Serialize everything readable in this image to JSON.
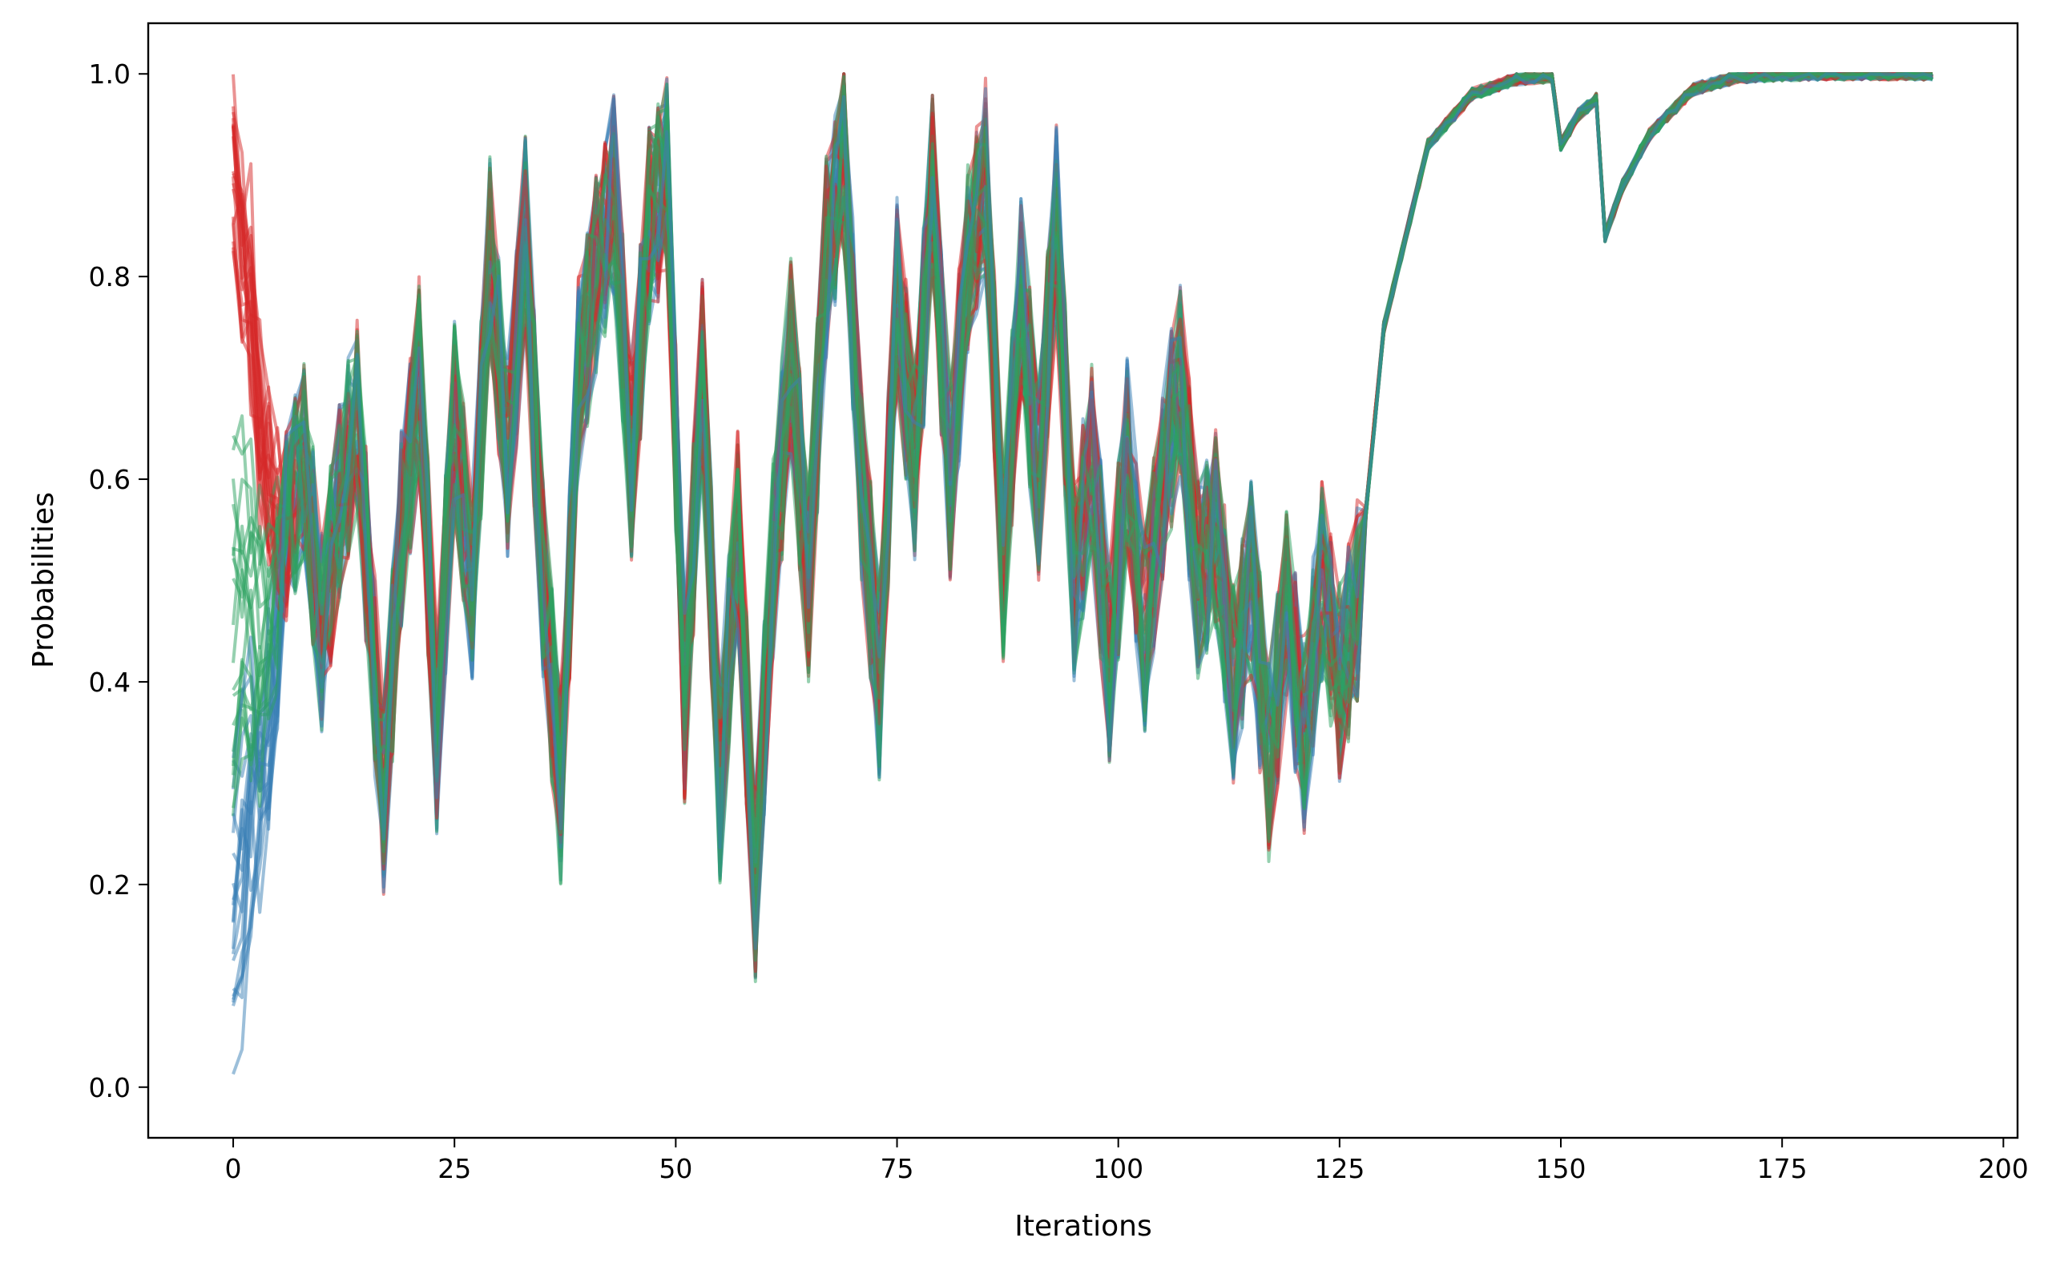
{
  "chart_data": {
    "type": "line",
    "title": "",
    "xlabel": "Iterations",
    "ylabel": "Probabilities",
    "xlim": [
      -9.6,
      201.6
    ],
    "ylim": [
      -0.05,
      1.05
    ],
    "xticks": [
      0,
      25,
      50,
      75,
      100,
      125,
      150,
      175,
      200
    ],
    "yticks": [
      0.0,
      0.2,
      0.4,
      0.6,
      0.8,
      1.0
    ],
    "xtick_labels": [
      "0",
      "25",
      "50",
      "75",
      "100",
      "125",
      "150",
      "175",
      "200"
    ],
    "ytick_labels": [
      "0.0",
      "0.2",
      "0.4",
      "0.6",
      "0.8",
      "1.0"
    ],
    "grid": false,
    "legend": "none",
    "line_alpha": 0.5,
    "series_groups": [
      {
        "color": "#d62728",
        "count": 20,
        "start": [
          0.82,
          1.0
        ],
        "iter_end": 192
      },
      {
        "color": "#2ca25f",
        "count": 20,
        "start": [
          0.25,
          0.65
        ],
        "iter_end": 192
      },
      {
        "color": "#3a7fb5",
        "count": 20,
        "start": [
          0.0,
          0.33
        ],
        "iter_end": 192
      }
    ],
    "representative_series": {
      "x": [
        0,
        3,
        6,
        8,
        10,
        12,
        14,
        17,
        19,
        21,
        23,
        25,
        27,
        29,
        31,
        33,
        35,
        37,
        39,
        41,
        43,
        45,
        47,
        49,
        51,
        53,
        55,
        57,
        59,
        61,
        63,
        65,
        67,
        69,
        71,
        73,
        75,
        77,
        79,
        81,
        83,
        85,
        87,
        89,
        91,
        93,
        95,
        97,
        99,
        101,
        103,
        105,
        107,
        109,
        111,
        113,
        115,
        117,
        119,
        121,
        123,
        125,
        127,
        130,
        135,
        140,
        145,
        149,
        150,
        152,
        154,
        155,
        157,
        160,
        165,
        170,
        175,
        180,
        192
      ],
      "y": [
        0.6,
        0.4,
        0.55,
        0.62,
        0.45,
        0.58,
        0.66,
        0.28,
        0.55,
        0.7,
        0.35,
        0.66,
        0.5,
        0.82,
        0.62,
        0.84,
        0.5,
        0.3,
        0.7,
        0.8,
        0.88,
        0.62,
        0.85,
        0.9,
        0.38,
        0.7,
        0.3,
        0.55,
        0.2,
        0.52,
        0.72,
        0.5,
        0.82,
        0.92,
        0.6,
        0.4,
        0.78,
        0.62,
        0.88,
        0.6,
        0.82,
        0.9,
        0.52,
        0.78,
        0.6,
        0.85,
        0.5,
        0.62,
        0.42,
        0.62,
        0.45,
        0.6,
        0.7,
        0.5,
        0.55,
        0.4,
        0.5,
        0.32,
        0.47,
        0.35,
        0.5,
        0.4,
        0.48,
        0.75,
        0.93,
        0.98,
        0.995,
        0.997,
        0.93,
        0.96,
        0.975,
        0.84,
        0.89,
        0.94,
        0.985,
        0.997,
        0.999,
        1.0,
        1.0
      ]
    }
  }
}
